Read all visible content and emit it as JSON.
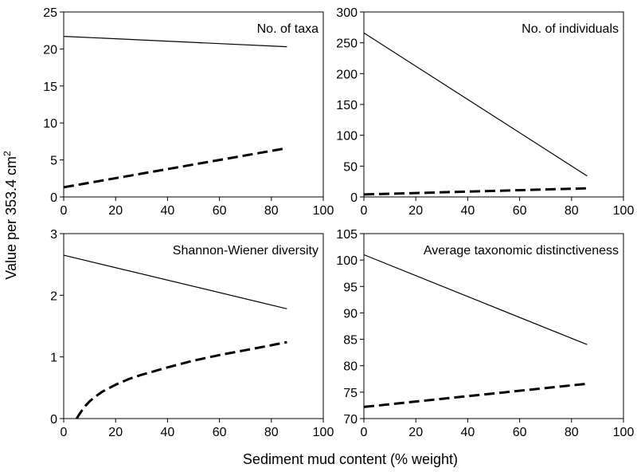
{
  "figure": {
    "xlabel": "Sediment mud content (% weight)",
    "ylabel_main": "Value per 353.4 cm",
    "ylabel_sup": "2"
  },
  "chart_data": [
    {
      "type": "line",
      "title": "No. of taxa",
      "legend_position": "top-right",
      "grid": false,
      "xlim": [
        0,
        100
      ],
      "xticks": [
        0,
        20,
        40,
        60,
        80,
        100
      ],
      "ylim": [
        0,
        25
      ],
      "yticks": [
        0,
        5,
        10,
        15,
        20,
        25
      ],
      "series": [
        {
          "style": "solid",
          "x": [
            0,
            86
          ],
          "y": [
            21.7,
            20.3
          ]
        },
        {
          "style": "dashed",
          "x": [
            0,
            86
          ],
          "y": [
            1.3,
            6.6
          ]
        }
      ]
    },
    {
      "type": "line",
      "title": "No. of individuals",
      "legend_position": "top-right",
      "grid": false,
      "xlim": [
        0,
        100
      ],
      "xticks": [
        0,
        20,
        40,
        60,
        80,
        100
      ],
      "ylim": [
        0,
        300
      ],
      "yticks": [
        0,
        50,
        100,
        150,
        200,
        250,
        300
      ],
      "series": [
        {
          "style": "solid",
          "x": [
            0,
            86
          ],
          "y": [
            266,
            34
          ]
        },
        {
          "style": "dashed",
          "x": [
            0,
            86
          ],
          "y": [
            4,
            14
          ]
        }
      ]
    },
    {
      "type": "line",
      "title": "Shannon-Wiener diversity",
      "legend_position": "top-right",
      "grid": false,
      "xlim": [
        0,
        100
      ],
      "xticks": [
        0,
        20,
        40,
        60,
        80,
        100
      ],
      "ylim": [
        0,
        3
      ],
      "yticks": [
        0,
        1,
        2,
        3
      ],
      "series": [
        {
          "style": "solid",
          "x": [
            0,
            86
          ],
          "y": [
            2.65,
            1.78
          ]
        },
        {
          "style": "dashed",
          "x": [
            5,
            6,
            8,
            10,
            12,
            15,
            20,
            25,
            30,
            40,
            50,
            60,
            70,
            80,
            86
          ],
          "y": [
            0.0,
            0.07,
            0.19,
            0.28,
            0.35,
            0.44,
            0.55,
            0.64,
            0.71,
            0.83,
            0.94,
            1.03,
            1.11,
            1.19,
            1.24
          ]
        }
      ]
    },
    {
      "type": "line",
      "title": "Average taxonomic distinctiveness",
      "legend_position": "top-right",
      "grid": false,
      "xlim": [
        0,
        100
      ],
      "xticks": [
        0,
        20,
        40,
        60,
        80,
        100
      ],
      "ylim": [
        70,
        105
      ],
      "yticks": [
        70,
        75,
        80,
        85,
        90,
        95,
        100,
        105
      ],
      "series": [
        {
          "style": "solid",
          "x": [
            0,
            86
          ],
          "y": [
            101,
            84
          ]
        },
        {
          "style": "dashed",
          "x": [
            0,
            86
          ],
          "y": [
            72.2,
            76.6
          ]
        }
      ]
    }
  ]
}
